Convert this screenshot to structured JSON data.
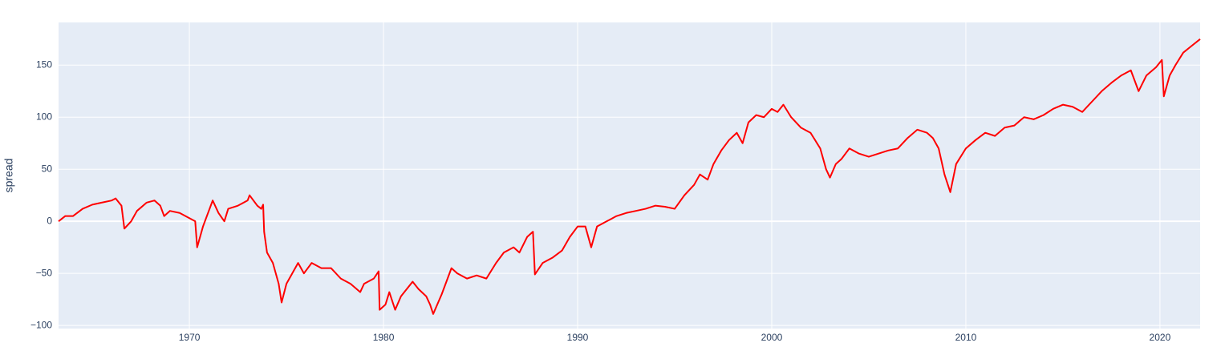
{
  "chart_data": {
    "type": "line",
    "y_title": "spread",
    "x": [
      1963.26,
      1963.6,
      1964,
      1964.5,
      1965,
      1965.5,
      1966,
      1966.2,
      1966.5,
      1966.65,
      1967,
      1967.3,
      1967.8,
      1968.2,
      1968.5,
      1968.7,
      1969,
      1969.5,
      1970,
      1970.3,
      1970.4,
      1970.7,
      1971,
      1971.2,
      1971.5,
      1971.8,
      1972,
      1972.5,
      1973,
      1973.1,
      1973.5,
      1973.7,
      1973.8,
      1973.85,
      1974,
      1974.3,
      1974.6,
      1974.75,
      1975,
      1975.3,
      1975.6,
      1975.9,
      1976.3,
      1976.8,
      1977.3,
      1977.8,
      1978.3,
      1978.8,
      1979,
      1979.5,
      1979.75,
      1979.8,
      1980.1,
      1980.3,
      1980.6,
      1980.9,
      1981.2,
      1981.5,
      1981.8,
      1982.2,
      1982.4,
      1982.56,
      1983,
      1983.3,
      1983.5,
      1983.8,
      1984.3,
      1984.8,
      1985.3,
      1985.8,
      1986.2,
      1986.7,
      1987,
      1987.4,
      1987.7,
      1987.8,
      1988.2,
      1988.7,
      1989.2,
      1989.6,
      1990,
      1990.4,
      1990.7,
      1991,
      1991.5,
      1992,
      1992.5,
      1993,
      1993.5,
      1994,
      1994.5,
      1995,
      1995.5,
      1996,
      1996.3,
      1996.7,
      1997,
      1997.4,
      1997.8,
      1998.2,
      1998.5,
      1998.8,
      1999.2,
      1999.6,
      2000,
      2000.3,
      2000.6,
      2001,
      2001.5,
      2002,
      2002.5,
      2002.8,
      2003,
      2003.3,
      2003.6,
      2004,
      2004.5,
      2005,
      2005.5,
      2006,
      2006.5,
      2007,
      2007.5,
      2008,
      2008.3,
      2008.6,
      2008.9,
      2009.2,
      2009.5,
      2010,
      2010.5,
      2011,
      2011.5,
      2012,
      2012.5,
      2013,
      2013.5,
      2014,
      2014.5,
      2015,
      2015.5,
      2016,
      2016.5,
      2017,
      2017.5,
      2018,
      2018.5,
      2018.9,
      2019.3,
      2019.8,
      2020.1,
      2020.2,
      2020.5,
      2020.8,
      2021.2,
      2021.6,
      2022.07
    ],
    "series": [
      {
        "name": "spread",
        "color": "#ff0000",
        "values": [
          0,
          5,
          5,
          12,
          16,
          18,
          20,
          22,
          15,
          -7,
          0,
          10,
          18,
          20,
          15,
          5,
          10,
          8,
          3,
          0,
          -25,
          -5,
          10,
          20,
          8,
          0,
          12,
          15,
          20,
          25,
          15,
          12,
          16,
          -10,
          -30,
          -40,
          -60,
          -78,
          -60,
          -50,
          -40,
          -50,
          -40,
          -45,
          -45,
          -55,
          -60,
          -68,
          -60,
          -55,
          -48,
          -85,
          -80,
          -68,
          -85,
          -72,
          -65,
          -58,
          -65,
          -72,
          -80,
          -89,
          -70,
          -55,
          -45,
          -50,
          -55,
          -52,
          -55,
          -40,
          -30,
          -25,
          -30,
          -15,
          -10,
          -51,
          -40,
          -35,
          -28,
          -15,
          -5,
          -5,
          -25,
          -5,
          0,
          5,
          8,
          10,
          12,
          15,
          14,
          12,
          25,
          35,
          45,
          40,
          55,
          68,
          78,
          85,
          75,
          95,
          102,
          100,
          108,
          105,
          112,
          100,
          90,
          85,
          70,
          50,
          42,
          55,
          60,
          70,
          65,
          62,
          65,
          68,
          70,
          80,
          88,
          85,
          80,
          70,
          45,
          28,
          55,
          70,
          78,
          85,
          82,
          90,
          92,
          100,
          98,
          102,
          108,
          112,
          110,
          105,
          115,
          125,
          133,
          140,
          145,
          125,
          140,
          148,
          155,
          120,
          140,
          150,
          162,
          168,
          175
        ]
      }
    ],
    "xlim": [
      1963.26,
      2022.07
    ],
    "ylim": [
      -103,
      191
    ],
    "xticks": [
      1970,
      1980,
      1990,
      2000,
      2010,
      2020
    ],
    "yticks": [
      {
        "value": -100,
        "label": "−100"
      },
      {
        "value": -50,
        "label": "−50"
      },
      0,
      50,
      100,
      150
    ],
    "grid": true
  }
}
